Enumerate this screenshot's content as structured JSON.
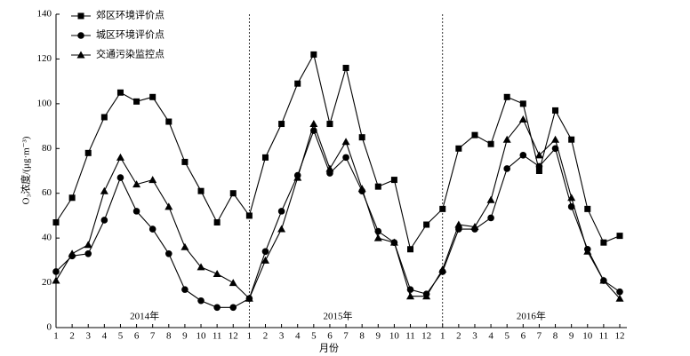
{
  "chart_data": {
    "type": "line",
    "x_label": "月份",
    "y_label": "O₃浓度/(μg·m⁻³)",
    "categories": [
      "1",
      "2",
      "3",
      "4",
      "5",
      "6",
      "7",
      "8",
      "9",
      "10",
      "11",
      "12",
      "1",
      "2",
      "3",
      "4",
      "5",
      "6",
      "7",
      "8",
      "9",
      "10",
      "11",
      "12",
      "1",
      "2",
      "3",
      "4",
      "5",
      "6",
      "7",
      "8",
      "9",
      "10",
      "11",
      "12"
    ],
    "annotations": [
      "2014年",
      "2015年",
      "2016年"
    ],
    "series": [
      {
        "name": "郊区环境评价点",
        "color": "#000000",
        "marker": "square",
        "values": [
          47,
          58,
          78,
          94,
          105,
          101,
          103,
          92,
          74,
          61,
          47,
          60,
          50,
          76,
          91,
          109,
          122,
          91,
          116,
          85,
          63,
          66,
          35,
          46,
          53,
          80,
          86,
          82,
          103,
          100,
          70,
          97,
          84,
          53,
          38,
          41
        ]
      },
      {
        "name": "城区环境评价点",
        "color": "#000000",
        "marker": "circle",
        "values": [
          25,
          32,
          33,
          48,
          67,
          52,
          44,
          33,
          17,
          12,
          9,
          9,
          13,
          34,
          52,
          68,
          88,
          69,
          76,
          61,
          43,
          38,
          17,
          15,
          25,
          44,
          44,
          49,
          71,
          77,
          72,
          80,
          54,
          35,
          21,
          16
        ]
      },
      {
        "name": "交通污染监控点",
        "color": "#000000",
        "marker": "triangle",
        "values": [
          21,
          33,
          37,
          61,
          76,
          64,
          66,
          54,
          36,
          27,
          24,
          20,
          13,
          30,
          44,
          67,
          91,
          71,
          83,
          62,
          40,
          38,
          14,
          14,
          26,
          46,
          45,
          57,
          84,
          93,
          77,
          84,
          58,
          34,
          21,
          13
        ]
      }
    ],
    "ylim": [
      0,
      140
    ],
    "yticks": [
      0,
      20,
      40,
      60,
      80,
      100,
      120,
      140
    ],
    "legend": "upper-left"
  }
}
